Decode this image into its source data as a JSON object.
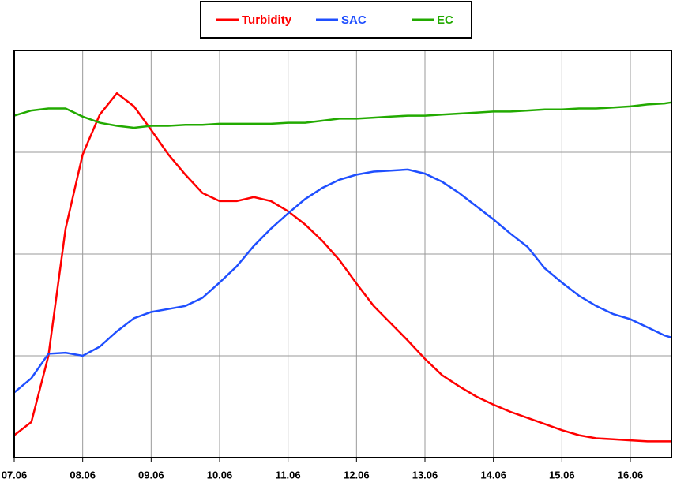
{
  "chart_data": {
    "type": "line",
    "x": [
      0,
      0.25,
      0.5,
      0.75,
      1,
      1.25,
      1.5,
      1.75,
      2,
      2.25,
      2.5,
      2.75,
      3,
      3.25,
      3.5,
      3.75,
      4,
      4.25,
      4.5,
      4.75,
      5,
      5.25,
      5.5,
      5.75,
      6,
      6.25,
      6.5,
      6.75,
      7,
      7.25,
      7.5,
      7.75,
      8,
      8.25,
      8.5,
      8.75,
      9,
      9.25,
      9.5,
      9.6
    ],
    "series": [
      {
        "name": "Turbidity",
        "color": "#ff0000",
        "values": [
          0.22,
          0.35,
          1.0,
          2.25,
          2.98,
          3.37,
          3.58,
          3.45,
          3.22,
          2.98,
          2.78,
          2.6,
          2.52,
          2.52,
          2.56,
          2.52,
          2.42,
          2.29,
          2.13,
          1.94,
          1.71,
          1.49,
          1.32,
          1.15,
          0.97,
          0.81,
          0.7,
          0.6,
          0.52,
          0.45,
          0.39,
          0.33,
          0.27,
          0.22,
          0.19,
          0.18,
          0.17,
          0.16,
          0.16,
          0.16
        ]
      },
      {
        "name": "SAC",
        "color": "#1f4fff",
        "values": [
          0.64,
          0.78,
          1.02,
          1.03,
          1.0,
          1.09,
          1.24,
          1.37,
          1.43,
          1.46,
          1.49,
          1.57,
          1.72,
          1.88,
          2.08,
          2.25,
          2.4,
          2.54,
          2.65,
          2.73,
          2.78,
          2.81,
          2.82,
          2.83,
          2.79,
          2.71,
          2.6,
          2.47,
          2.34,
          2.2,
          2.07,
          1.86,
          1.72,
          1.59,
          1.49,
          1.41,
          1.36,
          1.28,
          1.2,
          1.18
        ]
      },
      {
        "name": "EC",
        "color": "#22aa00",
        "values": [
          3.36,
          3.41,
          3.43,
          3.43,
          3.35,
          3.29,
          3.26,
          3.24,
          3.26,
          3.26,
          3.27,
          3.27,
          3.28,
          3.28,
          3.28,
          3.28,
          3.29,
          3.29,
          3.31,
          3.33,
          3.33,
          3.34,
          3.35,
          3.36,
          3.36,
          3.37,
          3.38,
          3.39,
          3.4,
          3.4,
          3.41,
          3.42,
          3.42,
          3.43,
          3.43,
          3.44,
          3.45,
          3.47,
          3.48,
          3.49
        ]
      }
    ],
    "xlim": [
      0,
      9.6
    ],
    "xticks": [
      {
        "value": 0,
        "label": "07.06"
      },
      {
        "value": 1,
        "label": "08.06"
      },
      {
        "value": 2,
        "label": "09.06"
      },
      {
        "value": 3,
        "label": "10.06"
      },
      {
        "value": 4,
        "label": "11.06"
      },
      {
        "value": 5,
        "label": "12.06"
      },
      {
        "value": 6,
        "label": "13.06"
      },
      {
        "value": 7,
        "label": "14.06"
      },
      {
        "value": 8,
        "label": "15.06"
      },
      {
        "value": 9,
        "label": "16.06"
      }
    ],
    "ylim": [
      0,
      4
    ],
    "yticks": [
      1,
      2,
      3
    ],
    "grid": true,
    "legend": "top"
  }
}
